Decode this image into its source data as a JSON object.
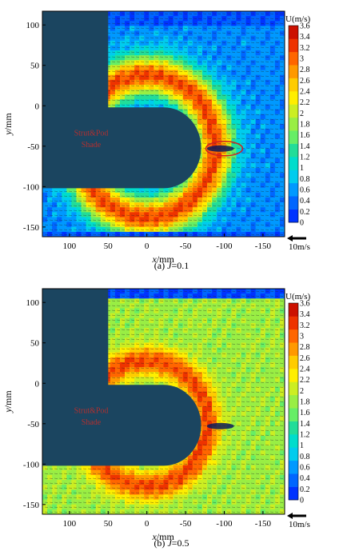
{
  "chart_data": [
    {
      "type": "heatmap",
      "caption_prefix": "(a) ",
      "caption_var": "J",
      "caption_value": "=0.1",
      "xlabel_var": "x",
      "xlabel_unit": "/mm",
      "ylabel_var": "y",
      "ylabel_unit": "/mm",
      "x_ticks": [
        100,
        50,
        0,
        -50,
        -100,
        -150
      ],
      "x_tick_labels": [
        "100",
        "50",
        "0",
        "-50",
        "-100",
        "-150"
      ],
      "y_ticks": [
        100,
        50,
        0,
        -50,
        -100,
        -150
      ],
      "y_tick_labels": [
        "100",
        "50",
        "0",
        "-50",
        "-100",
        "-150"
      ],
      "xlim": [
        135,
        -178
      ],
      "ylim": [
        -162,
        117
      ],
      "x_reversed": true,
      "grid": false,
      "colorbar_title": "U(m/s)",
      "colorbar_range": [
        0,
        3.6
      ],
      "colorbar_ticks": [
        "3.6",
        "3.4",
        "3.2",
        "3",
        "2.8",
        "2.6",
        "2.4",
        "2.2",
        "2",
        "1.8",
        "1.6",
        "1.4",
        "1.2",
        "1",
        "0.8",
        "0.6",
        "0.4",
        "0.2",
        "0"
      ],
      "reference_vector_label": "10m/s",
      "shade_label_line1": "Strut&Pod",
      "shade_label_line2": "Shade",
      "field": "ring",
      "circle_annotation": true
    },
    {
      "type": "heatmap",
      "caption_prefix": "(b) ",
      "caption_var": "J",
      "caption_value": "=0.5",
      "xlabel_var": "x",
      "xlabel_unit": "/mm",
      "ylabel_var": "y",
      "ylabel_unit": "/mm",
      "x_ticks": [
        100,
        50,
        0,
        -50,
        -100,
        -150
      ],
      "x_tick_labels": [
        "100",
        "50",
        "0",
        "-50",
        "-100",
        "-150"
      ],
      "y_ticks": [
        100,
        50,
        0,
        -50,
        -100,
        -150
      ],
      "y_tick_labels": [
        "100",
        "50",
        "0",
        "-50",
        "-100",
        "-150"
      ],
      "xlim": [
        135,
        -178
      ],
      "ylim": [
        -162,
        117
      ],
      "x_reversed": true,
      "grid": false,
      "colorbar_title": "U(m/s)",
      "colorbar_range": [
        0,
        3.6
      ],
      "colorbar_ticks": [
        "3.6",
        "3.4",
        "3.2",
        "3",
        "2.8",
        "2.6",
        "2.4",
        "2.2",
        "2",
        "1.8",
        "1.6",
        "1.4",
        "1.2",
        "1",
        "0.8",
        "0.6",
        "0.4",
        "0.2",
        "0"
      ],
      "reference_vector_label": "10m/s",
      "shade_label_line1": "Strut&Pod",
      "shade_label_line2": "Shade",
      "field": "jet",
      "circle_annotation": false
    }
  ],
  "colors": {
    "shade": "#1b4560",
    "colormap": [
      "#0033ff",
      "#0066ff",
      "#0099ff",
      "#00ccee",
      "#00ddcc",
      "#22dd99",
      "#66ee66",
      "#99ee44",
      "#ccee22",
      "#ffee00",
      "#ffcc00",
      "#ff9900",
      "#ff6600",
      "#ee3300",
      "#cc1100"
    ],
    "annotation": "#cc2222"
  }
}
